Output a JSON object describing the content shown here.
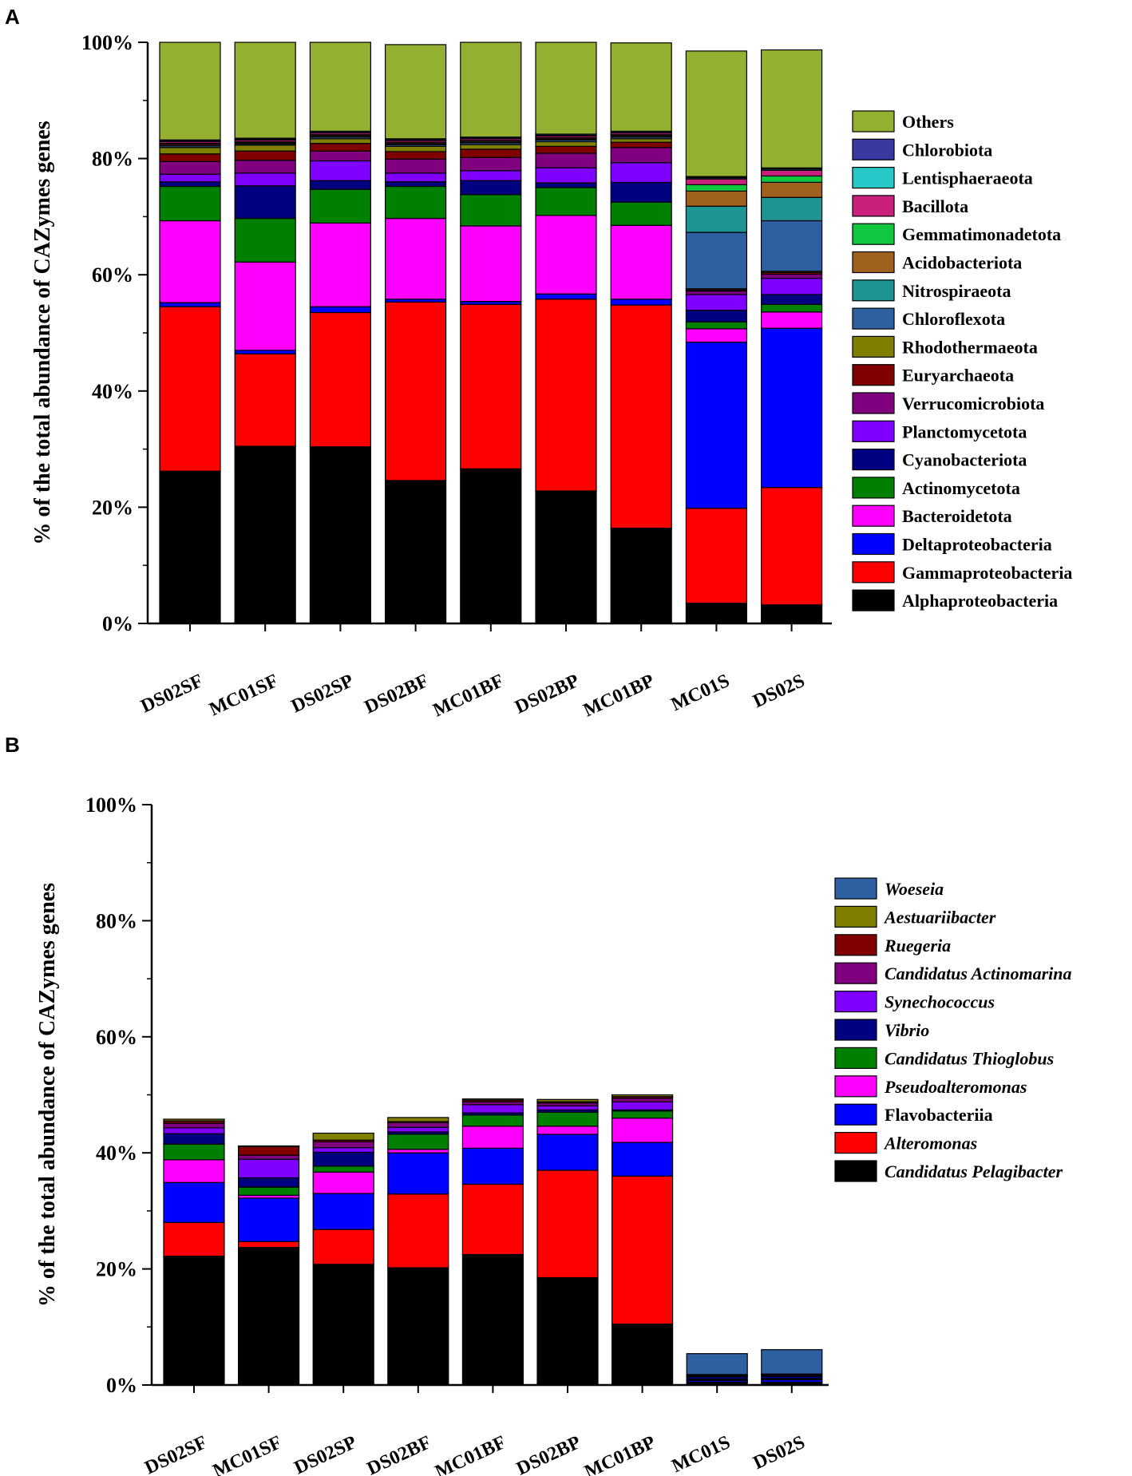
{
  "chart_data": [
    {
      "panel": "A",
      "type": "bar",
      "stacked": true,
      "ylabel": "% of the total abundance of CAZymes genes",
      "ylim": [
        0,
        100
      ],
      "yticks": [
        "0%",
        "20%",
        "40%",
        "60%",
        "80%",
        "100%"
      ],
      "categories": [
        "DS02SF",
        "MC01SF",
        "DS02SP",
        "DS02BF",
        "MC01BF",
        "DS02BP",
        "MC01BP",
        "MC01S",
        "DS02S"
      ],
      "series": [
        {
          "name": "Alphaproteobacteria",
          "italic": false,
          "color": "#000000",
          "values": [
            26.2,
            30.5,
            30.4,
            24.6,
            26.6,
            22.8,
            16.4,
            3.5,
            3.2
          ]
        },
        {
          "name": "Gammaproteobacteria",
          "italic": false,
          "color": "#ff0000",
          "values": [
            28.3,
            15.9,
            23.1,
            30.7,
            28.3,
            33.0,
            38.4,
            16.3,
            20.2
          ]
        },
        {
          "name": "Deltaproteobacteria",
          "italic": false,
          "color": "#0000ff",
          "values": [
            0.7,
            0.6,
            1.0,
            0.5,
            0.5,
            0.9,
            1.0,
            28.6,
            27.4
          ]
        },
        {
          "name": "Bacteroidetota",
          "italic": false,
          "color": "#ff00ff",
          "values": [
            14.1,
            15.2,
            14.4,
            13.9,
            13.0,
            13.5,
            12.7,
            2.3,
            2.8
          ]
        },
        {
          "name": "Actinomycetota",
          "italic": false,
          "color": "#008000",
          "values": [
            5.9,
            7.5,
            5.8,
            5.5,
            5.4,
            4.8,
            4.0,
            1.2,
            1.3
          ]
        },
        {
          "name": "Cyanobacteriota",
          "italic": false,
          "color": "#000080",
          "values": [
            0.8,
            5.6,
            1.5,
            0.8,
            2.4,
            0.8,
            3.4,
            2.0,
            1.7
          ]
        },
        {
          "name": "Planctomycetota",
          "italic": false,
          "color": "#8000ff",
          "values": [
            1.3,
            2.2,
            3.4,
            1.5,
            1.7,
            2.6,
            3.4,
            2.7,
            2.8
          ]
        },
        {
          "name": "Verrucomicrobiota",
          "italic": false,
          "color": "#800080",
          "values": [
            2.2,
            2.2,
            1.7,
            2.4,
            2.3,
            2.5,
            2.6,
            0.6,
            0.7
          ]
        },
        {
          "name": "Euryarchaeota",
          "italic": false,
          "color": "#800000",
          "values": [
            1.3,
            1.6,
            1.3,
            1.3,
            1.4,
            1.2,
            0.9,
            0.2,
            0.3
          ]
        },
        {
          "name": "Rhodothermaeota",
          "italic": false,
          "color": "#808000",
          "values": [
            1.1,
            1.0,
            0.8,
            0.9,
            0.8,
            0.8,
            0.6,
            0.2,
            0.2
          ]
        },
        {
          "name": "Chloroflexota",
          "italic": false,
          "color": "#2e5fa0",
          "values": [
            0.3,
            0.2,
            0.3,
            0.3,
            0.3,
            0.3,
            0.3,
            9.7,
            8.7
          ]
        },
        {
          "name": "Nitrospiraeota",
          "italic": false,
          "color": "#1e9494",
          "values": [
            0.1,
            0.1,
            0.1,
            0.1,
            0.1,
            0.1,
            0.1,
            4.5,
            4.0
          ]
        },
        {
          "name": "Acidobacteriota",
          "italic": false,
          "color": "#a0601e",
          "values": [
            0.2,
            0.2,
            0.2,
            0.2,
            0.2,
            0.2,
            0.2,
            2.6,
            2.6
          ]
        },
        {
          "name": "Gemmatimonadetota",
          "italic": false,
          "color": "#10c840",
          "values": [
            0.1,
            0.1,
            0.1,
            0.1,
            0.1,
            0.1,
            0.1,
            1.1,
            1.1
          ]
        },
        {
          "name": "Bacillota",
          "italic": false,
          "color": "#c8207c",
          "values": [
            0.3,
            0.3,
            0.3,
            0.3,
            0.3,
            0.3,
            0.3,
            1.0,
            1.0
          ]
        },
        {
          "name": "Lentisphaeraeota",
          "italic": false,
          "color": "#28c8c8",
          "values": [
            0.1,
            0.1,
            0.1,
            0.1,
            0.1,
            0.1,
            0.1,
            0.2,
            0.2
          ]
        },
        {
          "name": "Chlorobiota",
          "italic": false,
          "color": "#3838a0",
          "values": [
            0.2,
            0.2,
            0.2,
            0.2,
            0.2,
            0.2,
            0.2,
            0.2,
            0.2
          ]
        },
        {
          "name": "Others",
          "italic": false,
          "color": "#94b030",
          "values": [
            16.8,
            16.5,
            15.3,
            16.2,
            16.3,
            15.8,
            15.2,
            21.6,
            20.3
          ]
        }
      ]
    },
    {
      "panel": "B",
      "type": "bar",
      "stacked": true,
      "ylabel": "% of the total abundance of CAZymes genes",
      "ylim": [
        0,
        100
      ],
      "yticks": [
        "0%",
        "20%",
        "40%",
        "60%",
        "80%",
        "100%"
      ],
      "categories": [
        "DS02SF",
        "MC01SF",
        "DS02SP",
        "DS02BF",
        "MC01BF",
        "DS02BP",
        "MC01BP",
        "MC01S",
        "DS02S"
      ],
      "series": [
        {
          "name": "Candidatus Pelagibacter",
          "italic": true,
          "color": "#000000",
          "values": [
            22.2,
            23.7,
            20.8,
            20.2,
            22.5,
            18.5,
            10.5,
            0.4,
            0.4
          ]
        },
        {
          "name": "Alteromonas",
          "italic": true,
          "color": "#ff0000",
          "values": [
            5.8,
            1.0,
            6.0,
            12.7,
            12.1,
            18.5,
            25.5,
            0.1,
            0.1
          ]
        },
        {
          "name": "Flavobacteriia",
          "italic": false,
          "color": "#0000ff",
          "values": [
            6.9,
            7.5,
            6.2,
            7.1,
            6.2,
            6.2,
            5.8,
            0.3,
            0.4
          ]
        },
        {
          "name": "Pseudoalteromonas",
          "italic": true,
          "color": "#ff00ff",
          "values": [
            3.9,
            0.5,
            3.7,
            0.6,
            3.8,
            1.4,
            4.2,
            0.1,
            0.1
          ]
        },
        {
          "name": "Candidatus Thioglobus",
          "italic": true,
          "color": "#008000",
          "values": [
            2.7,
            1.4,
            1.0,
            2.6,
            1.9,
            2.4,
            1.2,
            0.1,
            0.1
          ]
        },
        {
          "name": "Vibrio",
          "italic": true,
          "color": "#000080",
          "values": [
            1.8,
            1.6,
            2.4,
            0.4,
            0.4,
            0.4,
            0.2,
            0.4,
            0.4
          ]
        },
        {
          "name": "Synechococcus",
          "italic": true,
          "color": "#8000ff",
          "values": [
            1.0,
            3.2,
            0.8,
            0.8,
            1.4,
            0.7,
            1.4,
            0.1,
            0.1
          ]
        },
        {
          "name": "Candidatus Actinomarina",
          "italic": true,
          "color": "#800080",
          "values": [
            0.8,
            0.7,
            1.0,
            0.8,
            0.5,
            0.5,
            0.6,
            0.1,
            0.1
          ]
        },
        {
          "name": "Ruegeria",
          "italic": true,
          "color": "#800000",
          "values": [
            0.4,
            1.5,
            0.3,
            0.2,
            0.3,
            0.2,
            0.3,
            0.1,
            0.1
          ]
        },
        {
          "name": "Aestuariibacter",
          "italic": true,
          "color": "#808000",
          "values": [
            0.3,
            0.1,
            1.2,
            0.7,
            0.2,
            0.4,
            0.3,
            0.1,
            0.1
          ]
        },
        {
          "name": "Woeseia",
          "italic": true,
          "color": "#2e5fa0",
          "values": [
            0.0,
            0.0,
            0.0,
            0.0,
            0.0,
            0.0,
            0.0,
            3.6,
            4.2
          ]
        }
      ]
    }
  ],
  "panel_labels": [
    "A",
    "B"
  ]
}
